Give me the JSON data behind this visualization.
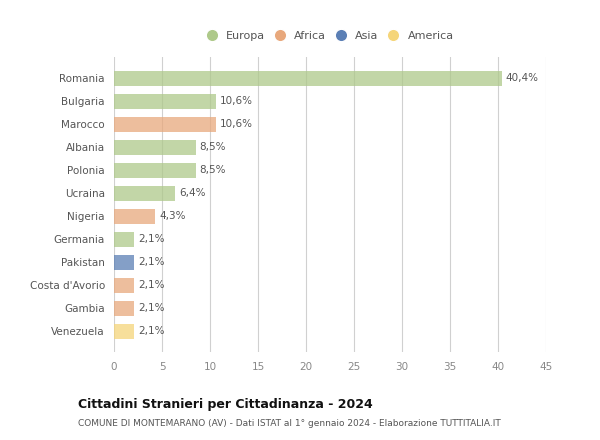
{
  "countries": [
    "Romania",
    "Bulgaria",
    "Marocco",
    "Albania",
    "Polonia",
    "Ucraina",
    "Nigeria",
    "Germania",
    "Pakistan",
    "Costa d'Avorio",
    "Gambia",
    "Venezuela"
  ],
  "values": [
    40.4,
    10.6,
    10.6,
    8.5,
    8.5,
    6.4,
    4.3,
    2.1,
    2.1,
    2.1,
    2.1,
    2.1
  ],
  "labels": [
    "40,4%",
    "10,6%",
    "10,6%",
    "8,5%",
    "8,5%",
    "6,4%",
    "4,3%",
    "2,1%",
    "2,1%",
    "2,1%",
    "2,1%",
    "2,1%"
  ],
  "colors": [
    "#aec98a",
    "#aec98a",
    "#e8a87c",
    "#aec98a",
    "#aec98a",
    "#aec98a",
    "#e8a87c",
    "#aec98a",
    "#5b7fb5",
    "#e8a87c",
    "#e8a87c",
    "#f5d57a"
  ],
  "legend_labels": [
    "Europa",
    "Africa",
    "Asia",
    "America"
  ],
  "legend_colors": [
    "#aec98a",
    "#e8a87c",
    "#5b7fb5",
    "#f5d57a"
  ],
  "xlim": [
    0,
    45
  ],
  "xticks": [
    0,
    5,
    10,
    15,
    20,
    25,
    30,
    35,
    40,
    45
  ],
  "title": "Cittadini Stranieri per Cittadinanza - 2024",
  "subtitle": "COMUNE DI MONTEMARANO (AV) - Dati ISTAT al 1° gennaio 2024 - Elaborazione TUTTITALIA.IT",
  "background_color": "#ffffff",
  "grid_color": "#d0d0d0",
  "bar_alpha": 0.75
}
